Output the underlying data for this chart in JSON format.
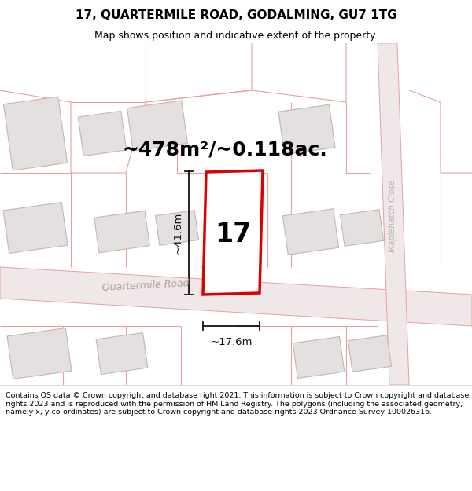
{
  "title": "17, QUARTERMILE ROAD, GODALMING, GU7 1TG",
  "subtitle": "Map shows position and indicative extent of the property.",
  "footer": "Contains OS data © Crown copyright and database right 2021. This information is subject to Crown copyright and database rights 2023 and is reproduced with the permission of HM Land Registry. The polygons (including the associated geometry, namely x, y co-ordinates) are subject to Crown copyright and database rights 2023 Ordnance Survey 100026316.",
  "area_label": "~478m²/~0.118ac.",
  "height_label": "~41.6m",
  "width_label": "~17.6m",
  "number_label": "17",
  "road_label": "Quartermile Road",
  "close_label": "Maplehatch Close",
  "map_bg": "#f7f2f2",
  "building_fill": "#e4e0e0",
  "building_stroke": "#c8b4b4",
  "parcel_color": "#e8a0a0",
  "plot_stroke": "#dd0000",
  "plot_fill": "#ffffff",
  "dim_color": "#111111",
  "road_label_color": "#b0a0a0",
  "close_label_color": "#b8b0b0",
  "title_fontsize": 11,
  "subtitle_fontsize": 9,
  "footer_fontsize": 6.8,
  "area_fontsize": 18,
  "number_fontsize": 24,
  "dim_fontsize": 9.5
}
